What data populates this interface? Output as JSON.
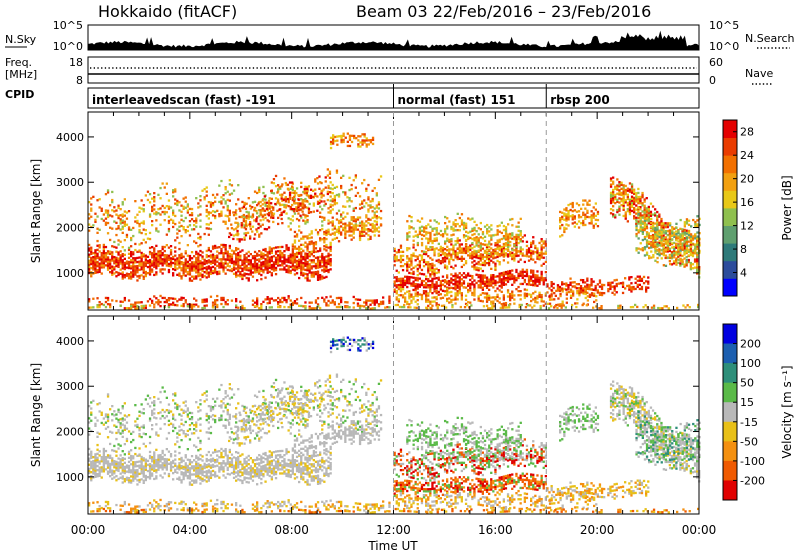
{
  "header": {
    "title": "Hokkaido (fitACF)",
    "beam_info": "Beam 03  22/Feb/2016 – 23/Feb/2016"
  },
  "side_labels": {
    "nsky": "N.Sky",
    "nsky_top": "10^5",
    "nsky_bottom": "10^0",
    "freq_line1": "Freq.",
    "freq_line2": "[MHz]",
    "freq_top": "18",
    "freq_bottom": "8",
    "cpid": "CPID",
    "nsearch": "N.Search",
    "nsearch_top": "10^5",
    "nsearch_bottom": "10^0",
    "nave": "Nave",
    "nave_top": "60",
    "nave_bottom": "0"
  },
  "cpid_modes": [
    {
      "label": "interleavedscan (fast) -191",
      "start_hour": 0
    },
    {
      "label": "normal (fast) 151",
      "start_hour": 12
    },
    {
      "label": "rbsp 200",
      "start_hour": 18
    }
  ],
  "colors": {
    "power": [
      "#0000ff",
      "#2c4c9c",
      "#2e7a7a",
      "#5f9f6f",
      "#8fc04f",
      "#e8c818",
      "#f2a010",
      "#f27000",
      "#ea3c00",
      "#e40000"
    ],
    "velocity": [
      "#0000e0",
      "#1c5fb0",
      "#2e8f7a",
      "#5aba48",
      "#b8b8b8",
      "#e8c018",
      "#f49010",
      "#f05a00",
      "#e00000"
    ]
  },
  "chart_data": [
    {
      "type": "heatmap",
      "name": "power",
      "x_range": [
        0,
        24
      ],
      "x_ticks": [
        "00:00",
        "04:00",
        "08:00",
        "12:00",
        "16:00",
        "20:00",
        "00:00"
      ],
      "ylabel": "Slant Range [km]",
      "ylim": [
        180,
        4550
      ],
      "y_ticks": [
        "1000",
        "2000",
        "3000",
        "4000"
      ],
      "colorbar_label": "Power [dB]",
      "colorbar_ticks": [
        "4",
        "8",
        "12",
        "16",
        "20",
        "24",
        "28"
      ],
      "colorbar_range": [
        0,
        30
      ]
    },
    {
      "type": "heatmap",
      "name": "velocity",
      "x_range": [
        0,
        24
      ],
      "x_ticks": [
        "00:00",
        "04:00",
        "08:00",
        "12:00",
        "16:00",
        "20:00",
        "00:00"
      ],
      "xlabel": "Time UT",
      "ylabel": "Slant Range [km]",
      "ylim": [
        180,
        4550
      ],
      "y_ticks": [
        "1000",
        "2000",
        "3000",
        "4000"
      ],
      "colorbar_label": "Velocity [m s⁻¹]",
      "colorbar_ticks": [
        "200",
        "100",
        "50",
        "15",
        "-15",
        "-50",
        "-100",
        "-200"
      ]
    }
  ]
}
